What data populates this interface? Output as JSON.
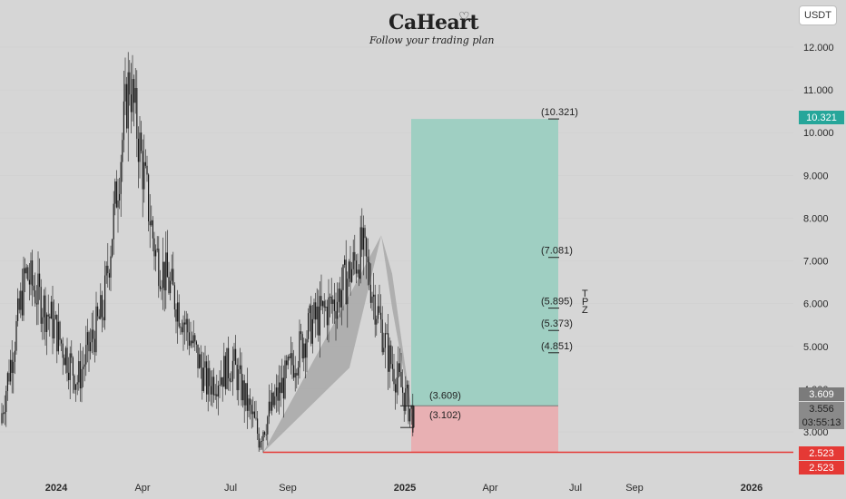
{
  "header": {
    "logo_text": "CaHeart",
    "tagline": "Follow your trading plan",
    "currency_button": "USDT"
  },
  "chart_data": {
    "type": "line",
    "series_kind": "candlestick",
    "ylim": [
      2.0,
      12.5
    ],
    "y_ticks": [
      "12.000",
      "11.000",
      "10.000",
      "9.000",
      "8.000",
      "7.000",
      "6.000",
      "5.000",
      "4.000",
      "3.000"
    ],
    "x_tick_labels": [
      "2024",
      "Apr",
      "Jul",
      "Sep",
      "2025",
      "Apr",
      "Jul",
      "Sep",
      "2026"
    ],
    "price_path": [
      {
        "x": "2023-10",
        "y": 3.2
      },
      {
        "x": "2023-11",
        "y": 6.7
      },
      {
        "x": "2023-12",
        "y": 5.6
      },
      {
        "x": "2024-01",
        "y": 4.2
      },
      {
        "x": "2024-02",
        "y": 5.9
      },
      {
        "x": "2024-03",
        "y": 11.3
      },
      {
        "x": "2024-04",
        "y": 7.2
      },
      {
        "x": "2024-05",
        "y": 5.8
      },
      {
        "x": "2024-06",
        "y": 4.1
      },
      {
        "x": "2024-07",
        "y": 4.6
      },
      {
        "x": "2024-08",
        "y": 2.9
      },
      {
        "x": "2024-09",
        "y": 4.2
      },
      {
        "x": "2024-10",
        "y": 5.5
      },
      {
        "x": "2024-11",
        "y": 6.1
      },
      {
        "x": "2024-12",
        "y": 7.3
      },
      {
        "x": "2025-01",
        "y": 4.8
      },
      {
        "x": "2025-01-15",
        "y": 3.3
      }
    ],
    "levels": [
      {
        "label": "(10.321)",
        "value": 10.321
      },
      {
        "label": "(7.081)",
        "value": 7.081
      },
      {
        "label": "(5.895)",
        "value": 5.895
      },
      {
        "label": "(5.373)",
        "value": 5.373
      },
      {
        "label": "(4.851)",
        "value": 4.851
      },
      {
        "label": "(3.609)",
        "value": 3.609
      },
      {
        "label": "(3.102)",
        "value": 3.102
      }
    ],
    "support_line": 2.523,
    "tpz_label": "T P Z",
    "price_labels": {
      "target": "10.321",
      "entry": "3.609",
      "last": "3.556",
      "countdown": "03:55:13",
      "support_a": "2.523",
      "support_b": "2.523"
    },
    "colors": {
      "profit_zone": "#9fcfc2",
      "loss_zone": "#e8b0b3",
      "support": "#e53935",
      "target_label_bg": "#26a69a",
      "entry_label_bg": "#7b7b7b",
      "support_label_bg": "#e53935",
      "candles": "#1a1a1a",
      "pattern": "#a8a8a8"
    }
  }
}
